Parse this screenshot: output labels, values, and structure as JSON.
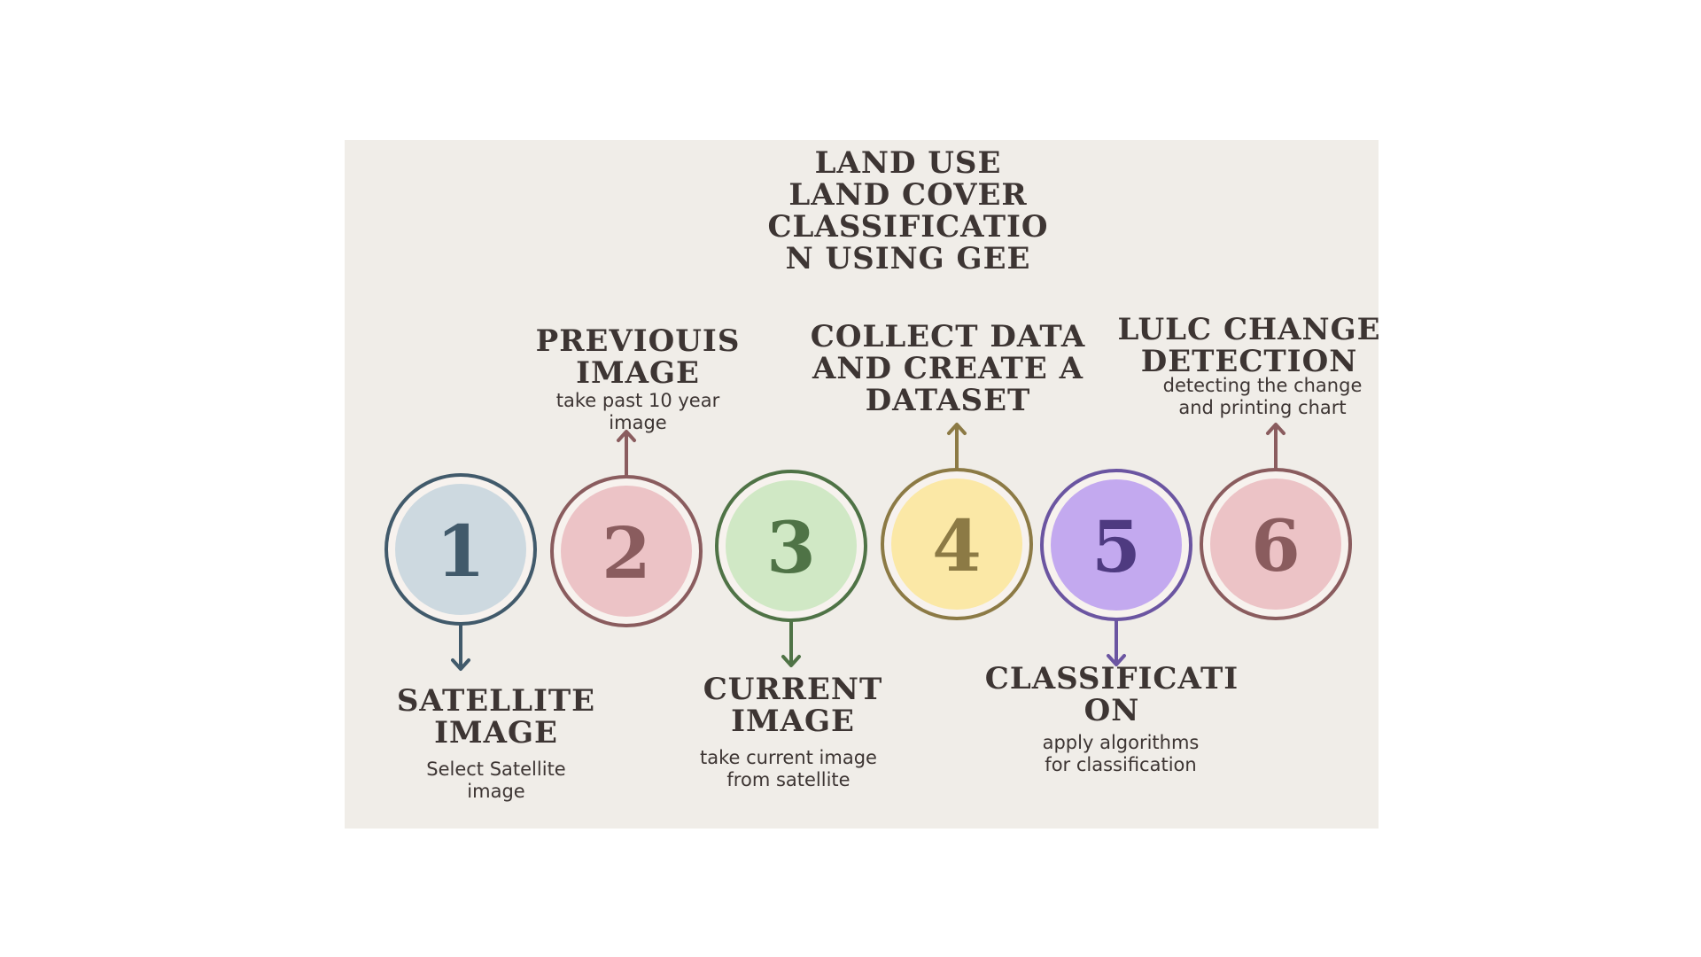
{
  "title": "LAND USE\nLAND COVER\nCLASSIFICATIO\nN USING GEE",
  "steps": [
    {
      "number": "1",
      "title": "SATELLITE\nIMAGE",
      "description": "Select Satellite\nimage",
      "fill": "#cdd9e0",
      "ring": "#415a6b",
      "text_color": "#415a6b"
    },
    {
      "number": "2",
      "title": "PREVIOUIS\nIMAGE",
      "description": "take past 10 year\nimage",
      "fill": "#ecc3c6",
      "ring": "#8a5c5e",
      "text_color": "#8a5c5e"
    },
    {
      "number": "3",
      "title": "CURRENT\nIMAGE",
      "description": "take current image\nfrom satellite",
      "fill": "#d0e8c5",
      "ring": "#4f7346",
      "text_color": "#4f7346"
    },
    {
      "number": "4",
      "title": "COLLECT DATA\nAND CREATE A\nDATASET",
      "description": "",
      "fill": "#fbe8a6",
      "ring": "#8c7a45",
      "text_color": "#8c7a45"
    },
    {
      "number": "5",
      "title": "CLASSIFICATI\nON",
      "description": "apply algorithms\nfor classification",
      "fill": "#c3a9ef",
      "ring": "#6b55a1",
      "text_color": "#4e3a80"
    },
    {
      "number": "6",
      "title": "LULC CHANGE\nDETECTION",
      "description": "detecting the change\nand printing chart",
      "fill": "#ecc3c6",
      "ring": "#8a5c5e",
      "text_color": "#8a5c5e"
    }
  ]
}
